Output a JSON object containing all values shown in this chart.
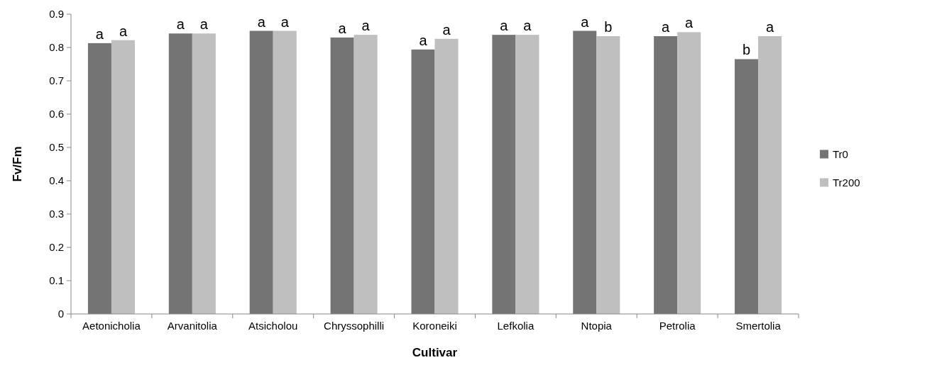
{
  "chart_data": {
    "type": "bar",
    "xlabel": "Cultivar",
    "ylabel": "Fv/Fm",
    "categories": [
      "Aetonicholia",
      "Arvanitolia",
      "Atsicholou",
      "Chryssophilli",
      "Koroneiki",
      "Lefkolia",
      "Ntopia",
      "Petrolia",
      "Smertolia"
    ],
    "series": [
      {
        "name": "Tr0",
        "color": "#747474",
        "values": [
          0.813,
          0.842,
          0.85,
          0.83,
          0.794,
          0.838,
          0.85,
          0.834,
          0.765
        ],
        "value_labels": [
          "a",
          "a",
          "a",
          "a",
          "a",
          "a",
          "a",
          "a",
          "b"
        ]
      },
      {
        "name": "Tr200",
        "color": "#bfbfbf",
        "values": [
          0.822,
          0.842,
          0.85,
          0.838,
          0.826,
          0.838,
          0.834,
          0.846,
          0.834
        ],
        "value_labels": [
          "a",
          "a",
          "a",
          "a",
          "a",
          "a",
          "b",
          "a",
          "a"
        ]
      }
    ],
    "ylim": [
      0,
      0.9
    ],
    "yticks": [
      0,
      0.1,
      0.2,
      0.3,
      0.4,
      0.5,
      0.6,
      0.7,
      0.8,
      0.9
    ],
    "grid": false,
    "legend": "right"
  }
}
